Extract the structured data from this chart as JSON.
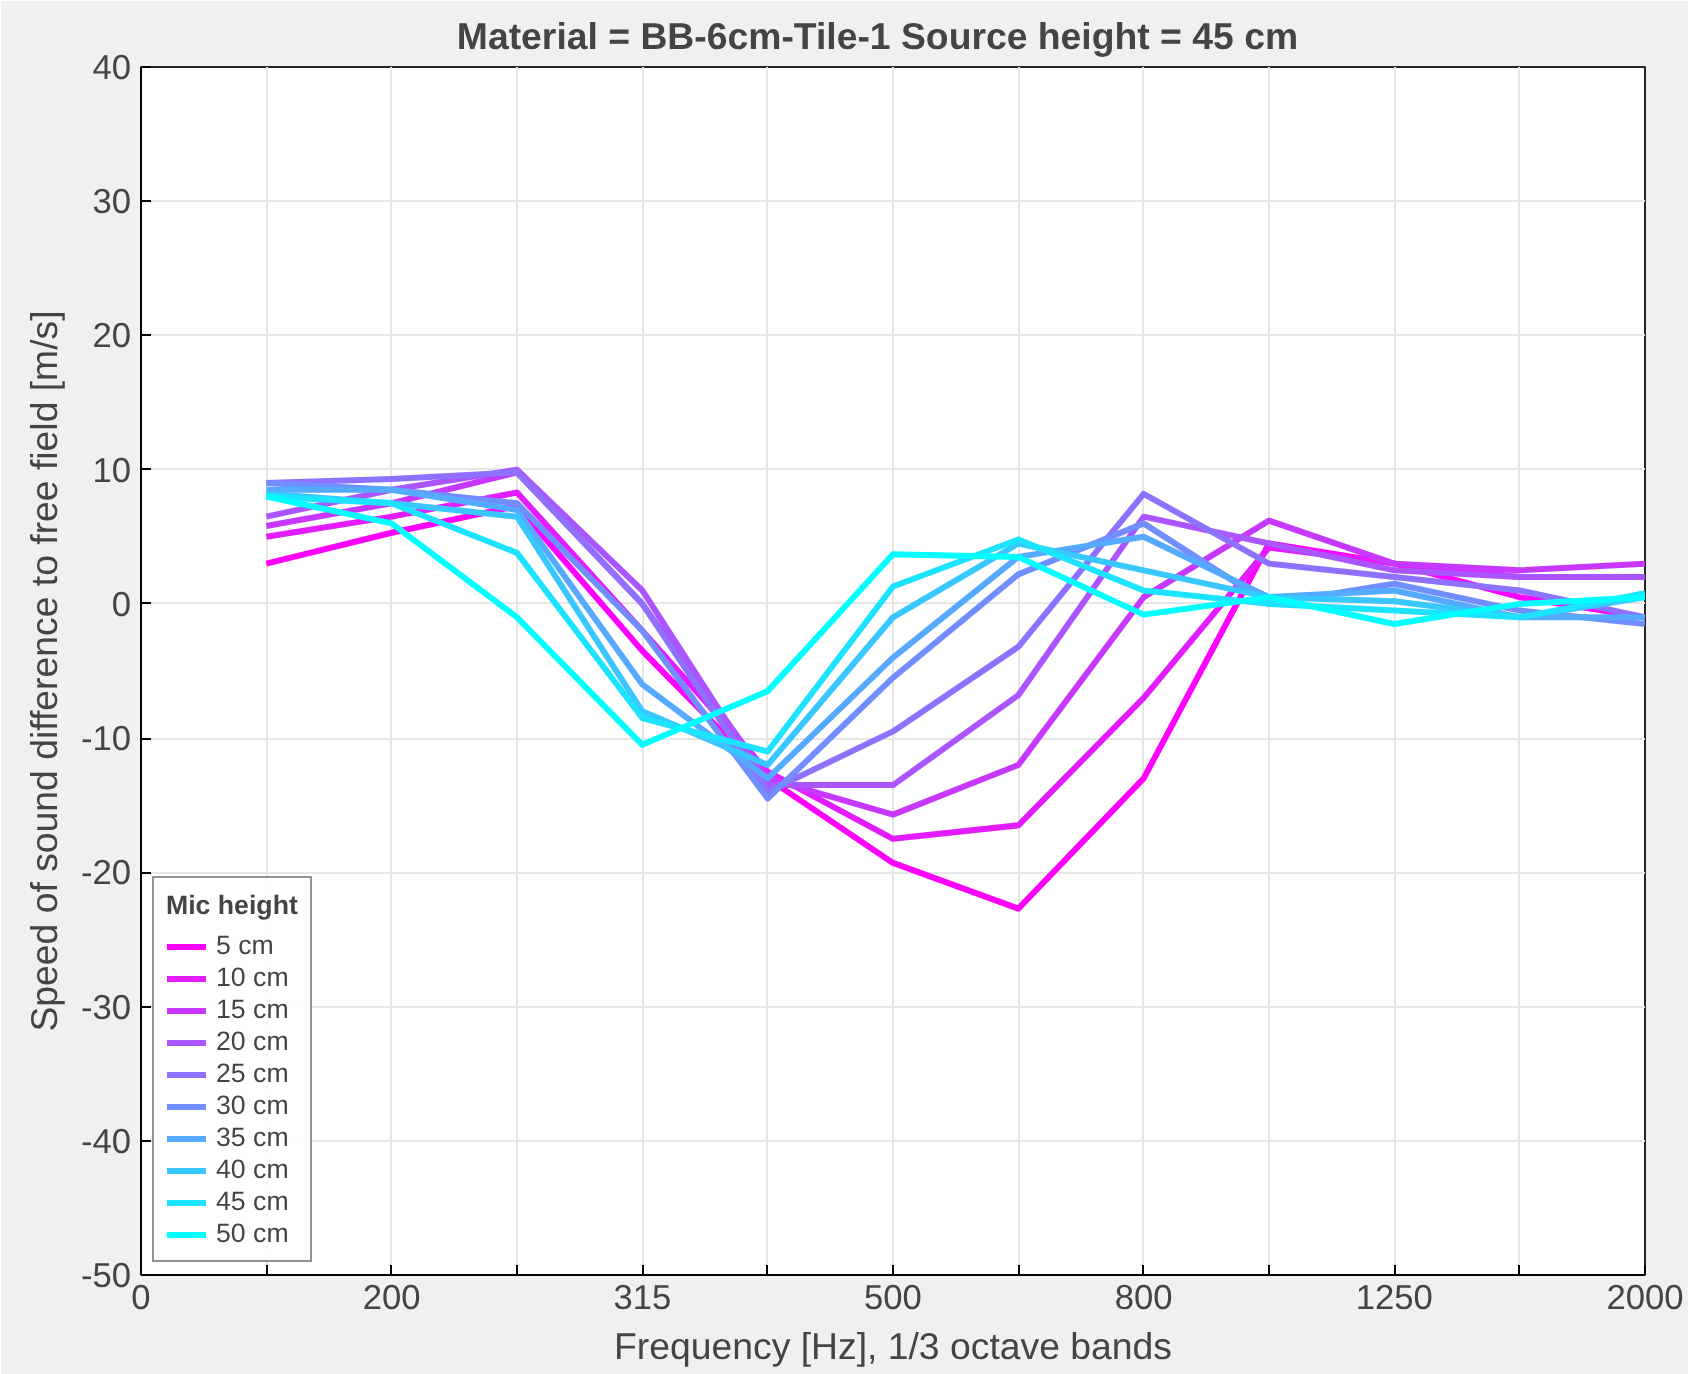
{
  "chart_data": {
    "type": "line",
    "title": "Material = BB-6cm-Tile-1    Source height = 45 cm",
    "xlabel": "Frequency [Hz], 1/3 octave bands",
    "ylabel": "Speed of sound difference to free field [m/s]",
    "legend_title": "Mic height",
    "legend": "bottom left",
    "grid": true,
    "categories": [
      "0",
      null,
      "200",
      null,
      "315",
      null,
      "500",
      null,
      "800",
      null,
      "1250",
      null,
      "2000"
    ],
    "ylim": [
      -50,
      40
    ],
    "yticks": [
      -50,
      -40,
      -30,
      -20,
      -10,
      0,
      10,
      20,
      30,
      40
    ],
    "series": [
      {
        "name": "5 cm",
        "color": "#ff00ff",
        "values": [
          null,
          3,
          5.3,
          7.3,
          -3.5,
          -13,
          -19.3,
          -22.7,
          -13,
          4.5,
          3,
          0.5,
          -1
        ]
      },
      {
        "name": "10 cm",
        "color": "#e31cff",
        "values": [
          null,
          5,
          6.5,
          8.3,
          -2,
          -12.5,
          -17.5,
          -16.5,
          -7,
          4.2,
          3,
          2,
          2
        ]
      },
      {
        "name": "15 cm",
        "color": "#c738ff",
        "values": [
          null,
          5.8,
          7.5,
          9.8,
          0,
          -13,
          -15.7,
          -12,
          0.5,
          6.2,
          3,
          2.5,
          3
        ]
      },
      {
        "name": "20 cm",
        "color": "#aa55ff",
        "values": [
          null,
          6.5,
          8.5,
          10,
          1,
          -13.5,
          -13.5,
          -6.8,
          6.5,
          4.5,
          2.5,
          2,
          2
        ]
      },
      {
        "name": "25 cm",
        "color": "#8e71ff",
        "values": [
          null,
          9,
          9.3,
          9.8,
          0,
          -14,
          -9.5,
          -3.2,
          8.2,
          3,
          2,
          1,
          -1
        ]
      },
      {
        "name": "30 cm",
        "color": "#718eff",
        "values": [
          null,
          9,
          8.5,
          7.5,
          -2,
          -14.5,
          -5.5,
          2.2,
          6,
          0,
          1.5,
          -0.5,
          -1.5
        ]
      },
      {
        "name": "35 cm",
        "color": "#55aaff",
        "values": [
          null,
          8.5,
          8.5,
          7,
          -6,
          -13,
          -4,
          3.5,
          5,
          0.5,
          1,
          -1,
          -1
        ]
      },
      {
        "name": "40 cm",
        "color": "#38c7ff",
        "values": [
          null,
          8.2,
          7.5,
          6.5,
          -8,
          -12,
          -1,
          4.5,
          2.5,
          0.5,
          0.2,
          -1,
          0.5
        ]
      },
      {
        "name": "45 cm",
        "color": "#1ce3ff",
        "values": [
          null,
          8,
          7.5,
          3.8,
          -8.5,
          -11,
          1.3,
          4.8,
          1,
          0,
          -0.5,
          -1,
          0.8
        ]
      },
      {
        "name": "50 cm",
        "color": "#00ffff",
        "values": [
          null,
          8,
          6,
          -1,
          -10.5,
          -6.5,
          3.7,
          3.5,
          -0.8,
          0.5,
          -1.5,
          0,
          0.5
        ]
      }
    ]
  }
}
